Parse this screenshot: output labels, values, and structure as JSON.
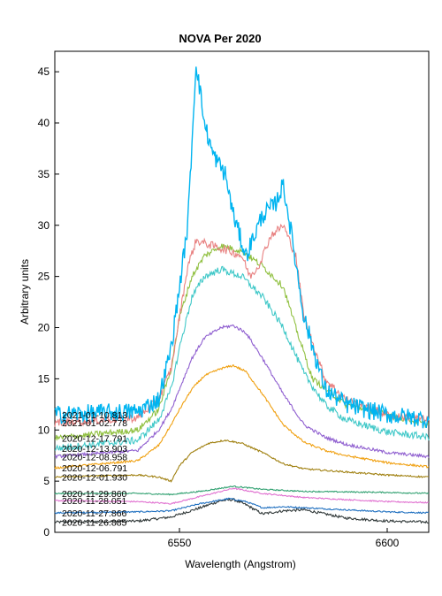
{
  "chart_data": {
    "type": "line",
    "title": "NOVA Per 2020",
    "xlabel": "Wavelength (Angstrom)",
    "ylabel": "Arbitrary units",
    "xlim": [
      6520,
      6610
    ],
    "ylim": [
      0,
      47
    ],
    "xticks": [
      6550,
      6600
    ],
    "yticks": [
      0,
      5,
      10,
      15,
      20,
      25,
      30,
      35,
      40,
      45
    ],
    "grid": false,
    "legend": "series names printed at left end of each spectrum",
    "series": [
      {
        "name": "2021-01-10.813",
        "color": "#00b4f0",
        "baseline": 11.5,
        "noise": 0.9,
        "points": [
          [
            6520,
            11.5
          ],
          [
            6540,
            11.8
          ],
          [
            6545,
            13
          ],
          [
            6548,
            18
          ],
          [
            6550,
            24
          ],
          [
            6552,
            30
          ],
          [
            6553,
            38
          ],
          [
            6554,
            46
          ],
          [
            6556,
            40
          ],
          [
            6558,
            37
          ],
          [
            6561,
            35
          ],
          [
            6563,
            31
          ],
          [
            6566,
            27
          ],
          [
            6568,
            29
          ],
          [
            6570,
            31
          ],
          [
            6573,
            32
          ],
          [
            6575,
            34
          ],
          [
            6577,
            29
          ],
          [
            6580,
            21
          ],
          [
            6585,
            14
          ],
          [
            6590,
            12.5
          ],
          [
            6600,
            11.5
          ],
          [
            6610,
            11
          ]
        ]
      },
      {
        "name": "2021-01-02.778",
        "color": "#e88080",
        "baseline": 10.7,
        "noise": 0.4,
        "points": [
          [
            6520,
            10.7
          ],
          [
            6540,
            11.2
          ],
          [
            6545,
            13
          ],
          [
            6548,
            16
          ],
          [
            6550,
            21
          ],
          [
            6552,
            26
          ],
          [
            6554,
            28.5
          ],
          [
            6558,
            28
          ],
          [
            6562,
            27.5
          ],
          [
            6565,
            27
          ],
          [
            6567,
            25
          ],
          [
            6569,
            26
          ],
          [
            6572,
            29
          ],
          [
            6575,
            30
          ],
          [
            6578,
            27
          ],
          [
            6580,
            21
          ],
          [
            6585,
            15
          ],
          [
            6590,
            13
          ],
          [
            6600,
            11.5
          ],
          [
            6610,
            11
          ]
        ]
      },
      {
        "name": "2020-12-17.791",
        "color": "#90c040",
        "baseline": 9.2,
        "noise": 0.3,
        "points": [
          [
            6520,
            9.2
          ],
          [
            6540,
            10
          ],
          [
            6545,
            12
          ],
          [
            6548,
            16
          ],
          [
            6550,
            21
          ],
          [
            6553,
            25
          ],
          [
            6556,
            27
          ],
          [
            6560,
            28
          ],
          [
            6565,
            27.5
          ],
          [
            6570,
            26
          ],
          [
            6575,
            24
          ],
          [
            6578,
            20
          ],
          [
            6582,
            15
          ],
          [
            6590,
            12.5
          ],
          [
            6600,
            11.5
          ],
          [
            6610,
            10.5
          ]
        ]
      },
      {
        "name": "2020-12-13.903",
        "color": "#40c8c8",
        "baseline": 8.2,
        "noise": 0.35,
        "points": [
          [
            6520,
            8.2
          ],
          [
            6540,
            9
          ],
          [
            6545,
            11
          ],
          [
            6548,
            14
          ],
          [
            6550,
            18
          ],
          [
            6553,
            23
          ],
          [
            6556,
            25
          ],
          [
            6560,
            25.7
          ],
          [
            6565,
            25
          ],
          [
            6570,
            23
          ],
          [
            6575,
            20
          ],
          [
            6580,
            15.5
          ],
          [
            6585,
            12.5
          ],
          [
            6590,
            11
          ],
          [
            6600,
            9.8
          ],
          [
            6610,
            9.3
          ]
        ]
      },
      {
        "name": "2020-12-08.958",
        "color": "#9060d0",
        "baseline": 7.4,
        "noise": 0.15,
        "points": [
          [
            6520,
            7.4
          ],
          [
            6540,
            8
          ],
          [
            6545,
            10
          ],
          [
            6548,
            12
          ],
          [
            6550,
            14
          ],
          [
            6553,
            17
          ],
          [
            6556,
            19
          ],
          [
            6560,
            20
          ],
          [
            6563,
            20.2
          ],
          [
            6566,
            19.5
          ],
          [
            6570,
            17
          ],
          [
            6575,
            13.5
          ],
          [
            6580,
            10.5
          ],
          [
            6585,
            9.3
          ],
          [
            6590,
            8.6
          ],
          [
            6600,
            7.8
          ],
          [
            6610,
            7.4
          ]
        ]
      },
      {
        "name": "2020-12-06.791",
        "color": "#f0a010",
        "baseline": 6.3,
        "noise": 0.1,
        "points": [
          [
            6520,
            6.3
          ],
          [
            6540,
            7
          ],
          [
            6545,
            8.5
          ],
          [
            6548,
            10.5
          ],
          [
            6550,
            12
          ],
          [
            6553,
            14
          ],
          [
            6556,
            15.3
          ],
          [
            6560,
            16
          ],
          [
            6563,
            16.3
          ],
          [
            6566,
            15.7
          ],
          [
            6570,
            13.5
          ],
          [
            6575,
            10.5
          ],
          [
            6580,
            8.8
          ],
          [
            6585,
            8
          ],
          [
            6590,
            7.5
          ],
          [
            6600,
            6.8
          ],
          [
            6610,
            6.4
          ]
        ]
      },
      {
        "name": "2020-12-01.930",
        "color": "#a08010",
        "baseline": 5.4,
        "noise": 0.08,
        "points": [
          [
            6520,
            5.4
          ],
          [
            6540,
            5.6
          ],
          [
            6545,
            5.4
          ],
          [
            6548,
            5
          ],
          [
            6550,
            6.5
          ],
          [
            6553,
            7.8
          ],
          [
            6557,
            8.7
          ],
          [
            6561,
            9
          ],
          [
            6565,
            8.7
          ],
          [
            6570,
            7.8
          ],
          [
            6575,
            6.7
          ],
          [
            6580,
            6.2
          ],
          [
            6590,
            5.9
          ],
          [
            6600,
            5.6
          ],
          [
            6610,
            5.4
          ]
        ]
      },
      {
        "name": "2020-11-29.860",
        "color": "#30a070",
        "baseline": 3.8,
        "noise": 0.06,
        "points": [
          [
            6520,
            3.8
          ],
          [
            6540,
            3.8
          ],
          [
            6548,
            3.7
          ],
          [
            6555,
            4
          ],
          [
            6563,
            4.5
          ],
          [
            6570,
            4.2
          ],
          [
            6580,
            4
          ],
          [
            6590,
            3.95
          ],
          [
            6600,
            3.9
          ],
          [
            6610,
            3.8
          ]
        ]
      },
      {
        "name": "2020-11-28.051",
        "color": "#e070d0",
        "baseline": 3.1,
        "noise": 0.06,
        "points": [
          [
            6520,
            3.1
          ],
          [
            6540,
            3
          ],
          [
            6548,
            2.8
          ],
          [
            6555,
            3.5
          ],
          [
            6563,
            4.3
          ],
          [
            6570,
            3.8
          ],
          [
            6580,
            3.4
          ],
          [
            6590,
            3.2
          ],
          [
            6600,
            3
          ],
          [
            6610,
            2.9
          ]
        ]
      },
      {
        "name": "2020-11-27.866",
        "color": "#2070c0",
        "baseline": 1.9,
        "noise": 0.07,
        "points": [
          [
            6520,
            1.9
          ],
          [
            6540,
            2
          ],
          [
            6548,
            2.1
          ],
          [
            6555,
            2.8
          ],
          [
            6562,
            3.3
          ],
          [
            6566,
            3
          ],
          [
            6570,
            2.4
          ],
          [
            6575,
            2.5
          ],
          [
            6580,
            2.4
          ],
          [
            6590,
            2.2
          ],
          [
            6600,
            2
          ],
          [
            6610,
            1.9
          ]
        ]
      },
      {
        "name": "2020-11-26.885",
        "color": "#303838",
        "baseline": 1.0,
        "noise": 0.12,
        "points": [
          [
            6520,
            1
          ],
          [
            6540,
            1.1
          ],
          [
            6548,
            1.5
          ],
          [
            6555,
            2.4
          ],
          [
            6560,
            3.1
          ],
          [
            6563,
            3.2
          ],
          [
            6566,
            2.7
          ],
          [
            6570,
            1.8
          ],
          [
            6575,
            2.1
          ],
          [
            6580,
            2.2
          ],
          [
            6585,
            1.8
          ],
          [
            6590,
            1.4
          ],
          [
            6600,
            1.1
          ],
          [
            6610,
            1
          ]
        ]
      }
    ]
  }
}
